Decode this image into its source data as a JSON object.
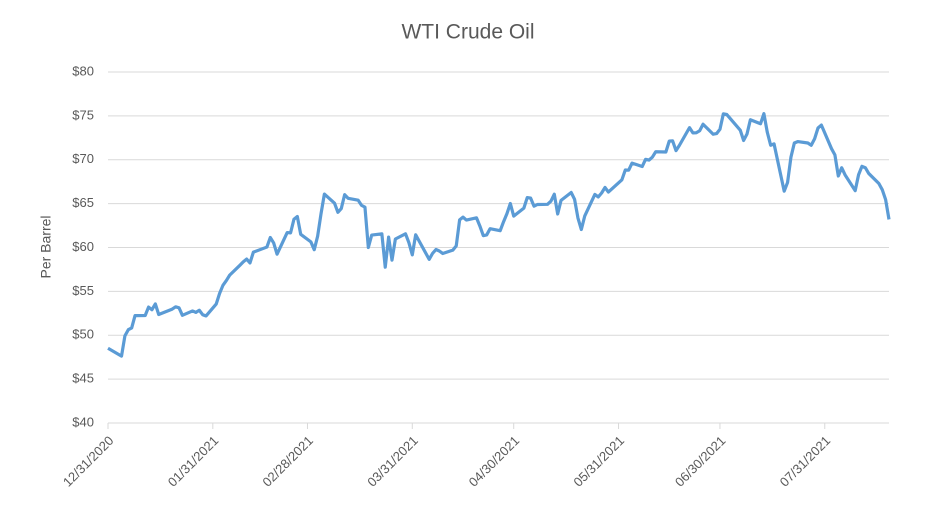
{
  "chart_data": {
    "type": "line",
    "title": "WTI Crude Oil",
    "y_label": "Per Barrel",
    "color": "#5b9bd5",
    "grid": true,
    "x": [
      "12/31/2020",
      "01/04/2021",
      "01/05/2021",
      "01/06/2021",
      "01/07/2021",
      "01/08/2021",
      "01/11/2021",
      "01/12/2021",
      "01/13/2021",
      "01/14/2021",
      "01/15/2021",
      "01/19/2021",
      "01/20/2021",
      "01/21/2021",
      "01/22/2021",
      "01/25/2021",
      "01/26/2021",
      "01/27/2021",
      "01/28/2021",
      "01/29/2021",
      "02/01/2021",
      "02/02/2021",
      "02/03/2021",
      "02/04/2021",
      "02/05/2021",
      "02/08/2021",
      "02/09/2021",
      "02/10/2021",
      "02/11/2021",
      "02/12/2021",
      "02/16/2021",
      "02/17/2021",
      "02/18/2021",
      "02/19/2021",
      "02/22/2021",
      "02/23/2021",
      "02/24/2021",
      "02/25/2021",
      "02/26/2021",
      "03/01/2021",
      "03/02/2021",
      "03/03/2021",
      "03/04/2021",
      "03/05/2021",
      "03/08/2021",
      "03/09/2021",
      "03/10/2021",
      "03/11/2021",
      "03/12/2021",
      "03/15/2021",
      "03/16/2021",
      "03/17/2021",
      "03/18/2021",
      "03/19/2021",
      "03/22/2021",
      "03/23/2021",
      "03/24/2021",
      "03/25/2021",
      "03/26/2021",
      "03/29/2021",
      "03/30/2021",
      "03/31/2021",
      "04/01/2021",
      "04/05/2021",
      "04/06/2021",
      "04/07/2021",
      "04/08/2021",
      "04/09/2021",
      "04/12/2021",
      "04/13/2021",
      "04/14/2021",
      "04/15/2021",
      "04/16/2021",
      "04/19/2021",
      "04/20/2021",
      "04/21/2021",
      "04/22/2021",
      "04/23/2021",
      "04/26/2021",
      "04/27/2021",
      "04/28/2021",
      "04/29/2021",
      "04/30/2021",
      "05/03/2021",
      "05/04/2021",
      "05/05/2021",
      "05/06/2021",
      "05/07/2021",
      "05/10/2021",
      "05/11/2021",
      "05/12/2021",
      "05/13/2021",
      "05/14/2021",
      "05/17/2021",
      "05/18/2021",
      "05/19/2021",
      "05/20/2021",
      "05/21/2021",
      "05/24/2021",
      "05/25/2021",
      "05/26/2021",
      "05/27/2021",
      "05/28/2021",
      "06/01/2021",
      "06/02/2021",
      "06/03/2021",
      "06/04/2021",
      "06/07/2021",
      "06/08/2021",
      "06/09/2021",
      "06/10/2021",
      "06/11/2021",
      "06/14/2021",
      "06/15/2021",
      "06/16/2021",
      "06/17/2021",
      "06/18/2021",
      "06/21/2021",
      "06/22/2021",
      "06/23/2021",
      "06/24/2021",
      "06/25/2021",
      "06/28/2021",
      "06/29/2021",
      "06/30/2021",
      "07/01/2021",
      "07/02/2021",
      "07/06/2021",
      "07/07/2021",
      "07/08/2021",
      "07/09/2021",
      "07/12/2021",
      "07/13/2021",
      "07/14/2021",
      "07/15/2021",
      "07/16/2021",
      "07/19/2021",
      "07/20/2021",
      "07/21/2021",
      "07/22/2021",
      "07/23/2021",
      "07/26/2021",
      "07/27/2021",
      "07/28/2021",
      "07/29/2021",
      "07/30/2021",
      "08/02/2021",
      "08/03/2021",
      "08/04/2021",
      "08/05/2021",
      "08/06/2021",
      "08/09/2021",
      "08/10/2021",
      "08/11/2021",
      "08/12/2021",
      "08/13/2021",
      "08/16/2021",
      "08/17/2021",
      "08/18/2021",
      "08/19/2021"
    ],
    "values": [
      48.52,
      47.62,
      49.93,
      50.63,
      50.83,
      52.24,
      52.25,
      53.21,
      52.91,
      53.57,
      52.36,
      52.98,
      53.24,
      53.13,
      52.27,
      52.77,
      52.61,
      52.85,
      52.34,
      52.2,
      53.55,
      54.76,
      55.69,
      56.23,
      56.85,
      57.97,
      58.36,
      58.68,
      58.24,
      59.47,
      60.05,
      61.14,
      60.52,
      59.24,
      61.7,
      61.67,
      63.22,
      63.53,
      61.5,
      60.64,
      59.75,
      61.28,
      63.83,
      66.09,
      65.05,
      64.01,
      64.44,
      66.02,
      65.61,
      65.39,
      64.8,
      64.6,
      60.0,
      61.42,
      61.55,
      57.76,
      61.18,
      58.56,
      60.97,
      61.56,
      60.55,
      59.16,
      61.45,
      58.65,
      59.33,
      59.77,
      59.6,
      59.32,
      59.7,
      60.18,
      63.15,
      63.46,
      63.13,
      63.38,
      62.44,
      61.35,
      61.43,
      62.14,
      61.91,
      62.94,
      63.86,
      65.01,
      63.58,
      64.49,
      65.69,
      65.63,
      64.71,
      64.9,
      64.92,
      65.28,
      66.08,
      63.82,
      65.37,
      66.27,
      65.49,
      63.36,
      62.05,
      63.58,
      66.05,
      65.76,
      66.21,
      66.85,
      66.32,
      67.72,
      68.83,
      68.81,
      69.62,
      69.23,
      70.05,
      69.96,
      70.29,
      70.91,
      70.88,
      72.12,
      72.15,
      71.04,
      71.64,
      73.66,
      73.06,
      73.08,
      73.3,
      74.05,
      72.91,
      72.98,
      73.47,
      75.23,
      75.16,
      73.37,
      72.2,
      72.94,
      74.56,
      74.1,
      75.25,
      73.13,
      71.65,
      71.81,
      66.42,
      67.42,
      70.3,
      71.91,
      72.07,
      71.91,
      71.65,
      72.39,
      73.62,
      73.95,
      71.26,
      70.56,
      68.15,
      69.09,
      68.28,
      66.48,
      68.29,
      69.25,
      69.09,
      68.44,
      67.29,
      66.59,
      65.46,
      63.2
    ],
    "xlim": [
      "12/31/2020",
      "08/19/2021"
    ],
    "xticks": [
      "12/31/2020",
      "01/31/2021",
      "02/28/2021",
      "03/31/2021",
      "04/30/2021",
      "05/31/2021",
      "06/30/2021",
      "07/31/2021"
    ],
    "ylim": [
      40,
      80
    ],
    "yticks": [
      {
        "value": 40,
        "label": "$40"
      },
      {
        "value": 45,
        "label": "$45"
      },
      {
        "value": 50,
        "label": "$50"
      },
      {
        "value": 55,
        "label": "$55"
      },
      {
        "value": 60,
        "label": "$60"
      },
      {
        "value": 65,
        "label": "$65"
      },
      {
        "value": 70,
        "label": "$70"
      },
      {
        "value": 75,
        "label": "$75"
      },
      {
        "value": 80,
        "label": "$80"
      }
    ]
  }
}
